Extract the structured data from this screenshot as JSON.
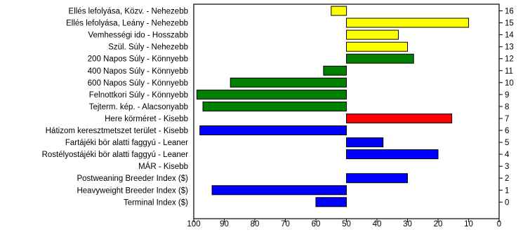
{
  "chart_data": {
    "type": "bar",
    "orientation": "horizontal",
    "xlim": [
      100,
      0
    ],
    "x_reversed": true,
    "baseline": 50,
    "x_ticks": [
      100,
      90,
      80,
      70,
      60,
      50,
      40,
      30,
      20,
      10,
      0
    ],
    "grid": false,
    "legend": "none",
    "bars": [
      {
        "label": "Ellés lefolyása, Közv. - Nehezebb",
        "index": 16,
        "value": 55,
        "color": "#ffff00"
      },
      {
        "label": "Ellés lefolyása, Leány - Nehezebb",
        "index": 15,
        "value": 10,
        "color": "#ffff00"
      },
      {
        "label": "Vemhességi ido - Hosszabb",
        "index": 14,
        "value": 33,
        "color": "#ffff00"
      },
      {
        "label": "Szül. Súly - Nehezebb",
        "index": 13,
        "value": 30,
        "color": "#ffff00"
      },
      {
        "label": "200 Napos Súly - Könnyebb",
        "index": 12,
        "value": 28,
        "color": "#008000"
      },
      {
        "label": "400 Napos Súly - Könnyebb",
        "index": 11,
        "value": 57.5,
        "color": "#008000"
      },
      {
        "label": "600 Napos Súly - Könnyebb",
        "index": 10,
        "value": 88,
        "color": "#008000"
      },
      {
        "label": "Felnottkori Súly - Könnyebb",
        "index": 9,
        "value": 99,
        "color": "#008000"
      },
      {
        "label": "Tejterm. kép. - Alacsonyabb",
        "index": 8,
        "value": 97,
        "color": "#008000"
      },
      {
        "label": "Here körméret - Kisebb",
        "index": 7,
        "value": 15.5,
        "color": "#ff0000"
      },
      {
        "label": "Hátizom keresztmetszet terület - Kisebb",
        "index": 6,
        "value": 98,
        "color": "#0000ff"
      },
      {
        "label": "Fartájéki bör alatti faggyú - Leaner",
        "index": 5,
        "value": 38,
        "color": "#0000ff"
      },
      {
        "label": "Rostélyostájéki bör alatti faggyú - Leaner",
        "index": 4,
        "value": 20,
        "color": "#0000ff"
      },
      {
        "label": "MÁR - Kisebb",
        "index": 3,
        "value": 50,
        "color": "#0000ff"
      },
      {
        "label": "Postweaning Breeder Index ($)",
        "index": 2,
        "value": 30,
        "color": "#0000ff"
      },
      {
        "label": "Heavyweight Breeder Index ($)",
        "index": 1,
        "value": 94,
        "color": "#0000ff"
      },
      {
        "label": "Terminal Index ($)",
        "index": 0,
        "value": 60,
        "color": "#0000ff"
      }
    ]
  }
}
